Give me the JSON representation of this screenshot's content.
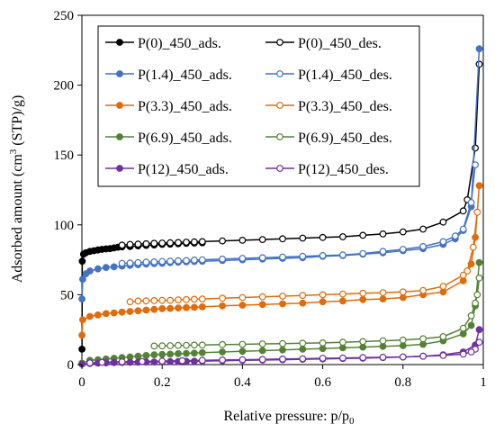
{
  "chart_data": {
    "type": "line",
    "title": "",
    "xlabel": "Relative pressure: p/p",
    "xlabel_sub": "0",
    "ylabel_pre": "Adsorbed amount (cm",
    "ylabel_sup": "3",
    "ylabel_post": " (STP)/g)",
    "xlim": [
      0,
      1
    ],
    "ylim": [
      0,
      250
    ],
    "xticks": [
      0,
      0.2,
      0.4,
      0.6,
      0.8,
      1
    ],
    "xtick_labels": [
      "0",
      "0.2",
      "0.4",
      "0.6",
      "0.8",
      "1"
    ],
    "yticks": [
      0,
      50,
      100,
      150,
      200,
      250
    ],
    "ytick_labels": [
      "0",
      "50",
      "100",
      "150",
      "200",
      "250"
    ],
    "grid": false,
    "legend": "top-left",
    "series": [
      {
        "name": "P(0)_450_ads.",
        "color": "#000000",
        "marker": "filled",
        "x": [
          0.0002,
          0.001,
          0.004,
          0.01,
          0.02,
          0.03,
          0.04,
          0.05,
          0.06,
          0.07,
          0.08,
          0.09,
          0.1,
          0.12,
          0.14,
          0.16,
          0.18,
          0.2,
          0.22,
          0.24,
          0.26,
          0.28,
          0.3
        ],
        "y": [
          11,
          74,
          79,
          80,
          81,
          81.5,
          82,
          82.5,
          82.8,
          83,
          83.5,
          84,
          84.2,
          84.5,
          85,
          85.3,
          85.6,
          86,
          86.2,
          86.5,
          86.8,
          87,
          87.2
        ]
      },
      {
        "name": "P(0)_450_des.",
        "color": "#000000",
        "marker": "open",
        "x": [
          0.99,
          0.98,
          0.96,
          0.95,
          0.9,
          0.85,
          0.8,
          0.75,
          0.7,
          0.65,
          0.6,
          0.55,
          0.5,
          0.45,
          0.4,
          0.35,
          0.3,
          0.28,
          0.26,
          0.24,
          0.22,
          0.2,
          0.18,
          0.16,
          0.14,
          0.12,
          0.1
        ],
        "y": [
          215,
          155,
          118,
          110,
          102,
          97,
          95,
          93.5,
          92.5,
          91.5,
          91,
          90.5,
          90,
          89.5,
          89,
          88.5,
          88,
          87.8,
          87.6,
          87.4,
          87.2,
          87,
          86.8,
          86.5,
          86.2,
          86,
          85.5
        ]
      },
      {
        "name": "P(1.4)_450_ads.",
        "color": "#4472C4",
        "marker": "filled",
        "x": [
          0.0002,
          0.002,
          0.01,
          0.02,
          0.04,
          0.06,
          0.08,
          0.1,
          0.12,
          0.14,
          0.16,
          0.18,
          0.2,
          0.22,
          0.24,
          0.26,
          0.28,
          0.3,
          0.35,
          0.4,
          0.45,
          0.5,
          0.55,
          0.6,
          0.65,
          0.7,
          0.75,
          0.8,
          0.85,
          0.9,
          0.93,
          0.95,
          0.97,
          0.99
        ],
        "y": [
          47,
          61,
          65,
          67,
          68.5,
          69.5,
          70,
          70.5,
          71,
          71.5,
          72,
          72.3,
          72.5,
          73,
          73.3,
          73.5,
          73.8,
          74,
          74.5,
          75,
          75.5,
          76,
          76.5,
          77.5,
          78,
          79,
          80,
          81.5,
          83,
          86,
          90,
          96,
          113,
          226
        ]
      },
      {
        "name": "P(1.4)_450_des.",
        "color": "#4472C4",
        "marker": "open",
        "x": [
          0.98,
          0.97,
          0.95,
          0.93,
          0.9,
          0.85,
          0.8,
          0.75,
          0.7,
          0.65,
          0.6,
          0.55,
          0.5,
          0.45,
          0.4,
          0.35,
          0.3,
          0.28,
          0.26,
          0.24,
          0.22,
          0.2,
          0.18,
          0.16,
          0.14,
          0.12,
          0.1
        ],
        "y": [
          143,
          116,
          97,
          92,
          88,
          84.5,
          82.5,
          81,
          79.5,
          78.5,
          78,
          77.5,
          77,
          76.5,
          76,
          75.5,
          75,
          74.8,
          74.5,
          74.3,
          74,
          73.8,
          73.5,
          73.3,
          73,
          72.7,
          72.5
        ]
      },
      {
        "name": "P(3.3)_450_ads.",
        "color": "#E26B0A",
        "marker": "filled",
        "x": [
          0.0002,
          0.002,
          0.02,
          0.04,
          0.06,
          0.08,
          0.1,
          0.12,
          0.14,
          0.16,
          0.18,
          0.2,
          0.22,
          0.24,
          0.26,
          0.28,
          0.3,
          0.35,
          0.4,
          0.45,
          0.5,
          0.55,
          0.6,
          0.65,
          0.7,
          0.75,
          0.8,
          0.85,
          0.9,
          0.95,
          0.97,
          0.98,
          0.99
        ],
        "y": [
          21,
          32,
          34.5,
          35.5,
          36.5,
          37,
          37.5,
          38,
          38.5,
          39,
          39.5,
          40,
          40.2,
          40.5,
          40.8,
          41,
          41.3,
          42,
          42.5,
          43,
          43.5,
          44,
          45,
          45.5,
          46.5,
          47,
          48,
          50,
          52,
          60,
          72,
          91,
          128
        ]
      },
      {
        "name": "P(3.3)_450_des.",
        "color": "#E26B0A",
        "marker": "open",
        "x": [
          0.985,
          0.975,
          0.96,
          0.95,
          0.9,
          0.85,
          0.8,
          0.75,
          0.7,
          0.65,
          0.6,
          0.55,
          0.5,
          0.45,
          0.4,
          0.35,
          0.3,
          0.28,
          0.26,
          0.24,
          0.22,
          0.2,
          0.18,
          0.16,
          0.14,
          0.12
        ],
        "y": [
          109,
          84,
          67,
          64,
          56,
          53,
          52,
          51.5,
          51,
          50.5,
          50,
          49.5,
          49,
          48.5,
          48,
          47.5,
          47,
          46.8,
          46.5,
          46.3,
          46,
          46,
          45.8,
          45.6,
          45.5,
          45
        ]
      },
      {
        "name": "P(6.9)_450_ads.",
        "color": "#548235",
        "marker": "filled",
        "x": [
          0.0002,
          0.02,
          0.04,
          0.06,
          0.08,
          0.1,
          0.12,
          0.14,
          0.16,
          0.18,
          0.2,
          0.22,
          0.24,
          0.26,
          0.28,
          0.3,
          0.35,
          0.4,
          0.45,
          0.5,
          0.55,
          0.6,
          0.65,
          0.7,
          0.75,
          0.8,
          0.85,
          0.9,
          0.95,
          0.97,
          0.98,
          0.99
        ],
        "y": [
          1,
          3,
          3.5,
          4,
          4.5,
          5,
          5.5,
          6,
          6.5,
          7,
          7.3,
          7.5,
          7.8,
          8,
          8.2,
          8.5,
          9,
          9.5,
          10,
          10.5,
          11,
          11.5,
          12,
          12.5,
          13,
          13.5,
          14.5,
          17,
          22,
          28,
          42,
          73
        ]
      },
      {
        "name": "P(6.9)_450_des.",
        "color": "#548235",
        "marker": "open",
        "x": [
          0.99,
          0.985,
          0.98,
          0.97,
          0.95,
          0.9,
          0.85,
          0.8,
          0.75,
          0.7,
          0.65,
          0.6,
          0.55,
          0.5,
          0.45,
          0.4,
          0.35,
          0.3,
          0.28,
          0.26,
          0.24,
          0.22,
          0.2,
          0.18
        ],
        "y": [
          62,
          50,
          44,
          35,
          26,
          20,
          18.5,
          17.5,
          17,
          16.5,
          16,
          15.5,
          15.3,
          15,
          14.8,
          14.5,
          14.3,
          14,
          14,
          13.8,
          13.7,
          13.5,
          13.4,
          13.3
        ]
      },
      {
        "name": "P(12)_450_ads.",
        "color": "#7030A0",
        "marker": "filled",
        "x": [
          0.0002,
          0.02,
          0.04,
          0.06,
          0.08,
          0.1,
          0.12,
          0.14,
          0.16,
          0.18,
          0.2,
          0.22,
          0.24,
          0.26,
          0.28,
          0.3,
          0.35,
          0.4,
          0.45,
          0.5,
          0.55,
          0.6,
          0.65,
          0.7,
          0.75,
          0.8,
          0.85,
          0.9,
          0.95,
          0.98,
          0.99
        ],
        "y": [
          0.3,
          0.8,
          1,
          1.2,
          1.4,
          1.5,
          1.6,
          1.7,
          1.8,
          1.9,
          2,
          2.1,
          2.2,
          2.3,
          2.4,
          2.5,
          2.7,
          3,
          3.2,
          3.5,
          3.8,
          4,
          4.3,
          4.6,
          5,
          5.4,
          6,
          7,
          9,
          14,
          25
        ]
      },
      {
        "name": "P(12)_450_des.",
        "color": "#7030A0",
        "marker": "open",
        "x": [
          0.99,
          0.98,
          0.97,
          0.95,
          0.9,
          0.85,
          0.8,
          0.75,
          0.7,
          0.65,
          0.6,
          0.55,
          0.5,
          0.45,
          0.4,
          0.35,
          0.3,
          0.25,
          0.2,
          0.15,
          0.1,
          0.05,
          0.02
        ],
        "y": [
          16,
          11,
          9,
          7.5,
          6.5,
          6,
          5.5,
          5.2,
          5,
          4.7,
          4.5,
          4.2,
          4,
          3.7,
          3.5,
          3.3,
          3,
          2.8,
          2.5,
          2.2,
          2,
          1.6,
          1.2
        ]
      }
    ]
  }
}
